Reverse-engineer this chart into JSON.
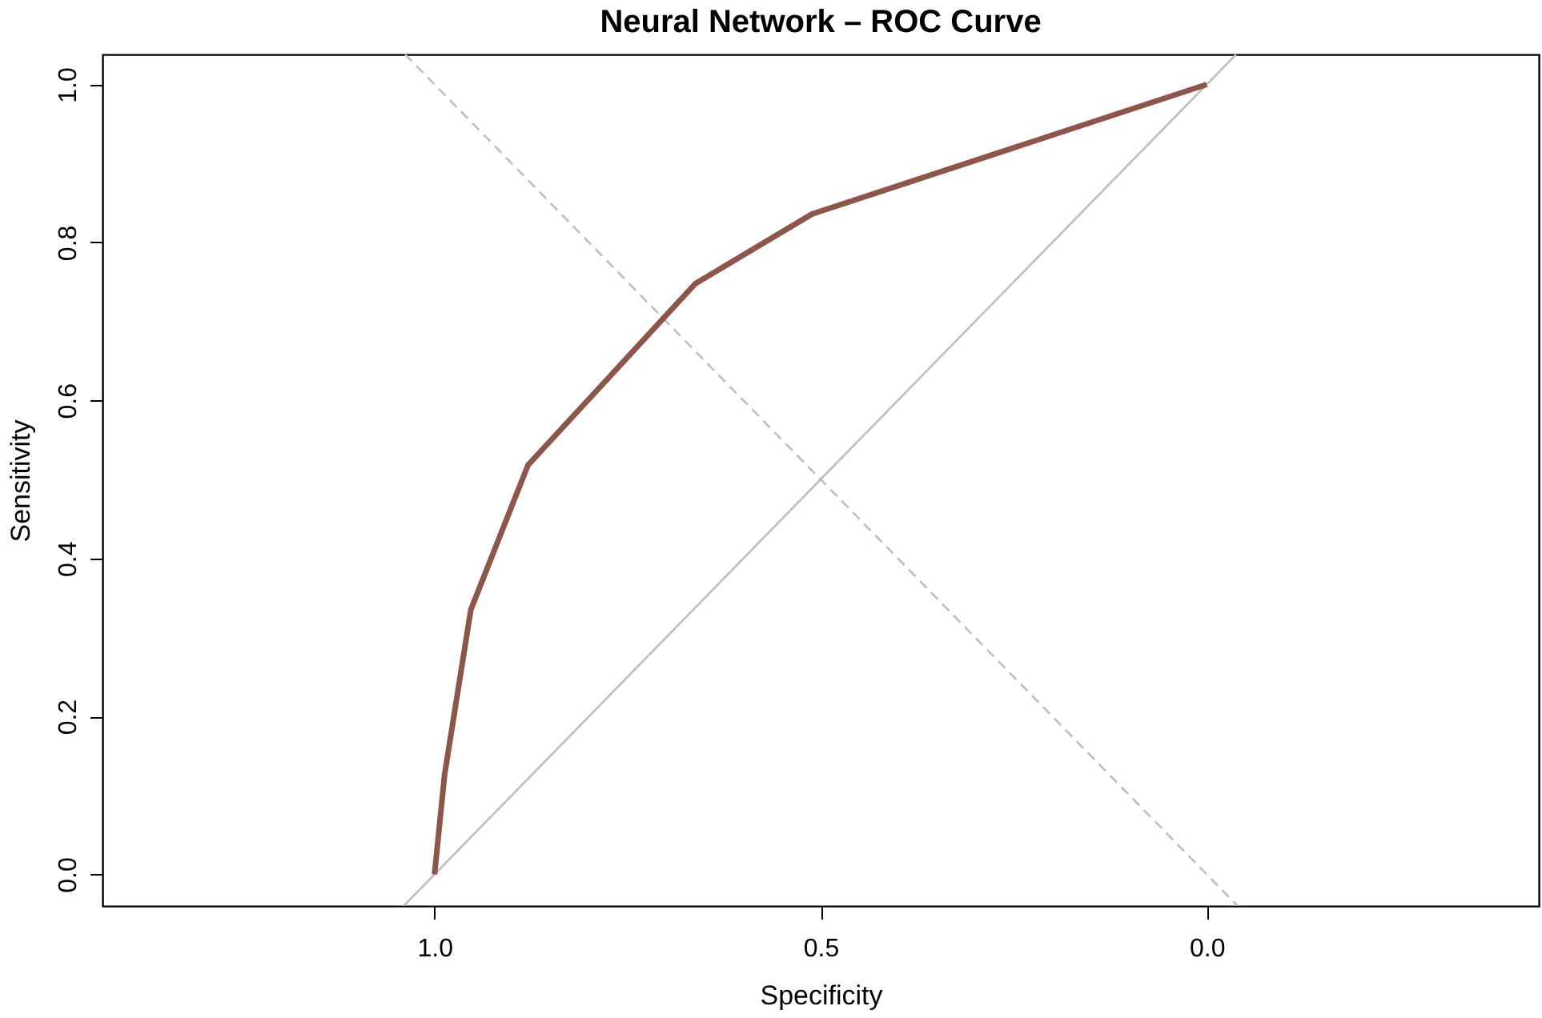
{
  "chart_data": {
    "type": "line",
    "title": "Neural Network – ROC Curve",
    "xlabel": "Specificity",
    "ylabel": "Sensitivity",
    "xlim": [
      1.43,
      -0.43
    ],
    "ylim": [
      -0.04,
      1.038
    ],
    "xticks": [
      {
        "value": 1,
        "label": "1.0"
      },
      0.5,
      {
        "value": 0,
        "label": "0.0"
      }
    ],
    "yticks": [
      {
        "value": 0,
        "label": "0.0"
      },
      0.2,
      0.4,
      0.6,
      0.8,
      {
        "value": 1,
        "label": "1.0"
      }
    ],
    "grid": false,
    "marker": "none",
    "series": [
      {
        "color": "#bebebe",
        "line_style": "solid",
        "x": [
          1.04,
          -0.038
        ],
        "values": [
          -0.04,
          1.038
        ]
      },
      {
        "color": "#bebebe",
        "line_style": "dashed",
        "x": [
          1.038,
          -0.04
        ],
        "values": [
          1.038,
          -0.04
        ]
      },
      {
        "color": "#8c564b",
        "line_style": "solid",
        "x": [
          1.0,
          0.987,
          0.953,
          0.879,
          0.662,
          0.511,
          0.0
        ],
        "values": [
          0.0,
          0.126,
          0.335,
          0.518,
          0.748,
          0.836,
          1.0
        ]
      }
    ]
  }
}
